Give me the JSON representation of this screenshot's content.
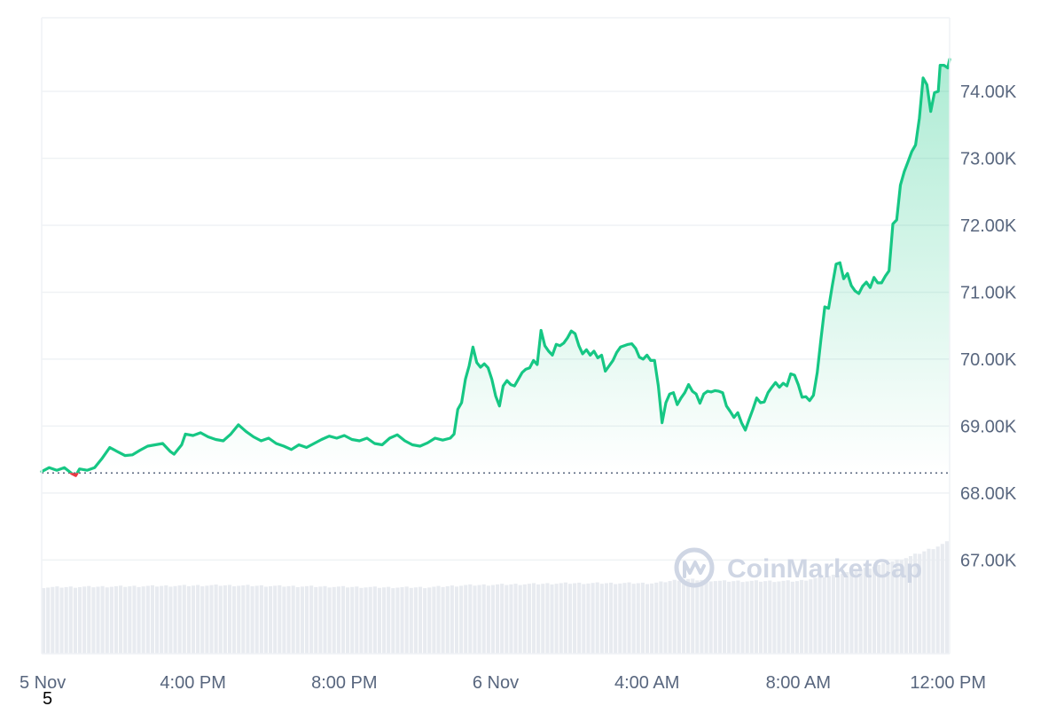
{
  "chart_data": {
    "type": "line",
    "title": "",
    "xlabel": "",
    "ylabel": "",
    "x_tick_labels": [
      "5 Nov",
      "4:00 PM",
      "8:00 PM",
      "6 Nov",
      "4:00 AM",
      "8:00 AM",
      "12:00 PM"
    ],
    "y_tick_labels": [
      "74.00K",
      "73.00K",
      "72.00K",
      "71.00K",
      "70.00K",
      "69.00K",
      "68.00K",
      "67.00K"
    ],
    "y_ticks": [
      74000,
      73000,
      72000,
      71000,
      70000,
      69000,
      68000,
      67000
    ],
    "ylim": [
      65600,
      75100
    ],
    "xlim": [
      0,
      24
    ],
    "x_unit": "hours since start of window (5 Nov, 12:00 PM)",
    "baseline": 68300,
    "grid": true,
    "legend": "none",
    "series": [
      {
        "color_up": "#16c784",
        "color_down": "#ea3943",
        "points": [
          [
            0,
            68320
          ],
          [
            0.2,
            68380
          ],
          [
            0.4,
            68340
          ],
          [
            0.6,
            68380
          ],
          [
            0.8,
            68290
          ],
          [
            0.9,
            68260
          ],
          [
            1.0,
            68360
          ],
          [
            1.2,
            68340
          ],
          [
            1.4,
            68380
          ],
          [
            1.6,
            68520
          ],
          [
            1.8,
            68680
          ],
          [
            2.0,
            68620
          ],
          [
            2.2,
            68560
          ],
          [
            2.4,
            68570
          ],
          [
            2.6,
            68640
          ],
          [
            2.8,
            68700
          ],
          [
            3.0,
            68720
          ],
          [
            3.2,
            68740
          ],
          [
            3.4,
            68620
          ],
          [
            3.5,
            68580
          ],
          [
            3.7,
            68720
          ],
          [
            3.8,
            68880
          ],
          [
            4.0,
            68860
          ],
          [
            4.2,
            68900
          ],
          [
            4.4,
            68840
          ],
          [
            4.6,
            68800
          ],
          [
            4.8,
            68780
          ],
          [
            5.0,
            68880
          ],
          [
            5.2,
            69020
          ],
          [
            5.4,
            68920
          ],
          [
            5.6,
            68840
          ],
          [
            5.8,
            68780
          ],
          [
            6.0,
            68820
          ],
          [
            6.2,
            68740
          ],
          [
            6.4,
            68700
          ],
          [
            6.6,
            68650
          ],
          [
            6.8,
            68720
          ],
          [
            7.0,
            68680
          ],
          [
            7.2,
            68740
          ],
          [
            7.4,
            68800
          ],
          [
            7.6,
            68850
          ],
          [
            7.8,
            68820
          ],
          [
            8.0,
            68860
          ],
          [
            8.2,
            68800
          ],
          [
            8.4,
            68780
          ],
          [
            8.6,
            68820
          ],
          [
            8.8,
            68740
          ],
          [
            9.0,
            68720
          ],
          [
            9.2,
            68820
          ],
          [
            9.4,
            68870
          ],
          [
            9.6,
            68780
          ],
          [
            9.8,
            68720
          ],
          [
            10.0,
            68700
          ],
          [
            10.2,
            68750
          ],
          [
            10.4,
            68820
          ],
          [
            10.6,
            68790
          ],
          [
            10.8,
            68820
          ],
          [
            10.9,
            68880
          ],
          [
            11.0,
            69250
          ],
          [
            11.1,
            69350
          ],
          [
            11.2,
            69700
          ],
          [
            11.3,
            69900
          ],
          [
            11.4,
            70180
          ],
          [
            11.5,
            69950
          ],
          [
            11.6,
            69880
          ],
          [
            11.7,
            69930
          ],
          [
            11.8,
            69870
          ],
          [
            11.9,
            69700
          ],
          [
            12.0,
            69450
          ],
          [
            12.1,
            69300
          ],
          [
            12.2,
            69600
          ],
          [
            12.3,
            69680
          ],
          [
            12.4,
            69620
          ],
          [
            12.5,
            69600
          ],
          [
            12.6,
            69700
          ],
          [
            12.7,
            69800
          ],
          [
            12.8,
            69850
          ],
          [
            12.9,
            69870
          ],
          [
            13.0,
            69980
          ],
          [
            13.1,
            69920
          ],
          [
            13.2,
            70430
          ],
          [
            13.3,
            70200
          ],
          [
            13.4,
            70120
          ],
          [
            13.5,
            70060
          ],
          [
            13.6,
            70220
          ],
          [
            13.7,
            70200
          ],
          [
            13.8,
            70240
          ],
          [
            13.9,
            70320
          ],
          [
            14.0,
            70420
          ],
          [
            14.1,
            70380
          ],
          [
            14.2,
            70200
          ],
          [
            14.3,
            70080
          ],
          [
            14.4,
            70140
          ],
          [
            14.5,
            70060
          ],
          [
            14.6,
            70120
          ],
          [
            14.7,
            70020
          ],
          [
            14.8,
            70060
          ],
          [
            14.9,
            69820
          ],
          [
            15.0,
            69900
          ],
          [
            15.1,
            69980
          ],
          [
            15.2,
            70100
          ],
          [
            15.3,
            70180
          ],
          [
            15.4,
            70200
          ],
          [
            15.5,
            70220
          ],
          [
            15.6,
            70230
          ],
          [
            15.7,
            70160
          ],
          [
            15.8,
            70030
          ],
          [
            15.9,
            70000
          ],
          [
            16.0,
            70060
          ],
          [
            16.1,
            69980
          ],
          [
            16.2,
            69980
          ],
          [
            16.3,
            69600
          ],
          [
            16.4,
            69050
          ],
          [
            16.5,
            69350
          ],
          [
            16.6,
            69480
          ],
          [
            16.7,
            69500
          ],
          [
            16.8,
            69320
          ],
          [
            16.9,
            69420
          ],
          [
            17.0,
            69500
          ],
          [
            17.1,
            69620
          ],
          [
            17.2,
            69520
          ],
          [
            17.3,
            69480
          ],
          [
            17.4,
            69340
          ],
          [
            17.5,
            69480
          ],
          [
            17.6,
            69520
          ],
          [
            17.7,
            69510
          ],
          [
            17.8,
            69530
          ],
          [
            17.9,
            69520
          ],
          [
            18.0,
            69500
          ],
          [
            18.1,
            69300
          ],
          [
            18.2,
            69220
          ],
          [
            18.3,
            69130
          ],
          [
            18.4,
            69200
          ],
          [
            18.5,
            69050
          ],
          [
            18.6,
            68940
          ],
          [
            18.7,
            69100
          ],
          [
            18.8,
            69250
          ],
          [
            18.9,
            69420
          ],
          [
            19.0,
            69350
          ],
          [
            19.1,
            69360
          ],
          [
            19.2,
            69500
          ],
          [
            19.3,
            69580
          ],
          [
            19.4,
            69650
          ],
          [
            19.5,
            69580
          ],
          [
            19.6,
            69640
          ],
          [
            19.7,
            69600
          ],
          [
            19.8,
            69780
          ],
          [
            19.9,
            69760
          ],
          [
            20.0,
            69620
          ],
          [
            20.1,
            69430
          ],
          [
            20.2,
            69440
          ],
          [
            20.3,
            69380
          ],
          [
            20.4,
            69460
          ],
          [
            20.5,
            69800
          ],
          [
            20.6,
            70300
          ],
          [
            20.7,
            70780
          ],
          [
            20.8,
            70760
          ],
          [
            20.9,
            71100
          ],
          [
            21.0,
            71420
          ],
          [
            21.1,
            71440
          ],
          [
            21.2,
            71200
          ],
          [
            21.3,
            71280
          ],
          [
            21.4,
            71100
          ],
          [
            21.5,
            71020
          ],
          [
            21.6,
            70980
          ],
          [
            21.7,
            71090
          ],
          [
            21.8,
            71150
          ],
          [
            21.9,
            71070
          ],
          [
            22.0,
            71220
          ],
          [
            22.1,
            71140
          ],
          [
            22.2,
            71140
          ],
          [
            22.3,
            71240
          ],
          [
            22.4,
            71320
          ],
          [
            22.5,
            72020
          ],
          [
            22.6,
            72080
          ],
          [
            22.7,
            72600
          ],
          [
            22.8,
            72800
          ],
          [
            22.9,
            72950
          ],
          [
            23.0,
            73100
          ],
          [
            23.1,
            73200
          ],
          [
            23.2,
            73600
          ],
          [
            23.3,
            74200
          ],
          [
            23.4,
            74100
          ],
          [
            23.5,
            73700
          ],
          [
            23.6,
            73980
          ],
          [
            23.7,
            74000
          ],
          [
            23.75,
            74390
          ],
          [
            23.85,
            74390
          ],
          [
            23.95,
            74350
          ],
          [
            24.0,
            74480
          ]
        ]
      }
    ],
    "volume_profile": [
      [
        0,
        0.32
      ],
      [
        4.7,
        0.33
      ],
      [
        9.0,
        0.32
      ],
      [
        10.2,
        0.32
      ],
      [
        11.2,
        0.33
      ],
      [
        14.0,
        0.34
      ],
      [
        16.2,
        0.34
      ],
      [
        17.0,
        0.36
      ],
      [
        18.0,
        0.35
      ],
      [
        20.0,
        0.35
      ],
      [
        21.0,
        0.38
      ],
      [
        22.0,
        0.42
      ],
      [
        23.0,
        0.47
      ],
      [
        24.0,
        0.54
      ]
    ]
  },
  "watermark": {
    "brand": "CoinMarketCap",
    "icon": "coinmarketcap-logo-icon"
  },
  "footnote": "5",
  "colors": {
    "up": "#16c784",
    "down": "#ea3943",
    "grid": "#eff2f5",
    "axis_text": "#58667e",
    "volume": "#e8ebf0",
    "watermark": "#cfd6e4"
  }
}
